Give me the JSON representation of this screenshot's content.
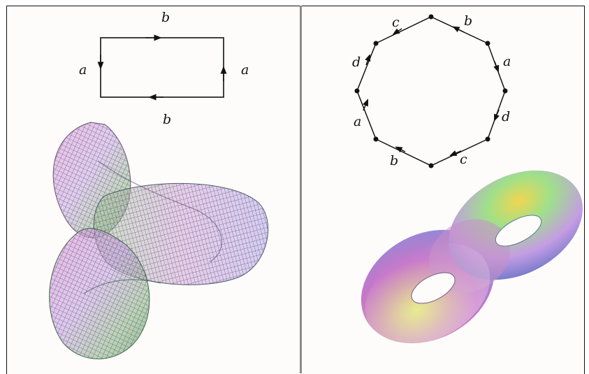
{
  "square_diagram": {
    "edge_top": "b",
    "edge_bottom": "b",
    "edge_left": "a",
    "edge_right": "a"
  },
  "octagon_diagram": {
    "edge_labels": [
      "b",
      "a",
      "d",
      "c",
      "b",
      "a",
      "d",
      "c"
    ]
  },
  "colors": {
    "divider": "#8a8a8a",
    "background": "#fdfcfb",
    "lines": "#111111"
  },
  "icons": {
    "left_surface": "klein-bottle-wireframe",
    "right_surface": "double-torus-shaded"
  }
}
